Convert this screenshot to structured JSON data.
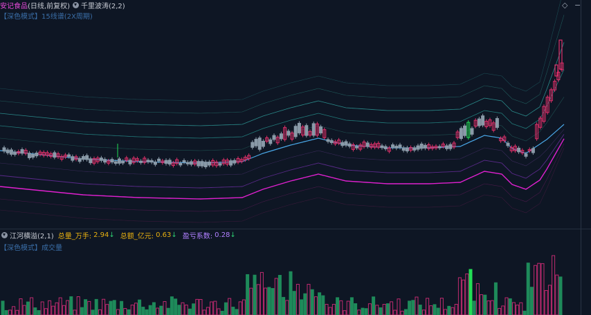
{
  "main_panel": {
    "stock_name": "安记食品",
    "period": "(日线,前复权)",
    "indicator": "千里波涛(2,2)",
    "mode_label": "【深色模式】",
    "mode_desc": "15线谱(2X周期)",
    "icons": [
      "diamond-icon",
      "minus-icon"
    ]
  },
  "volume_panel": {
    "indicator": "江河横溢(2,1)",
    "vol_label": "总量_万手:",
    "vol_value": "2.94",
    "amt_label": "总额_亿元:",
    "amt_value": "0.63",
    "pl_label": "盈亏系数:",
    "pl_value": "0.28",
    "arrow": "↓",
    "mode_label": "【深色模式】",
    "mode_desc": "成交量"
  },
  "colors": {
    "up_candle": "#e0306a",
    "down_candle": "#8a9aa8",
    "mid_line": "#4aa8e8",
    "upper_band": "#2aa8a8",
    "lower_band": "#e020d0",
    "value_yellow": "#e8b010",
    "value_purple": "#b080ff",
    "vol_up": "#c02a70",
    "vol_down": "#1e8a5a",
    "highlight_green": "#22dd55"
  }
}
